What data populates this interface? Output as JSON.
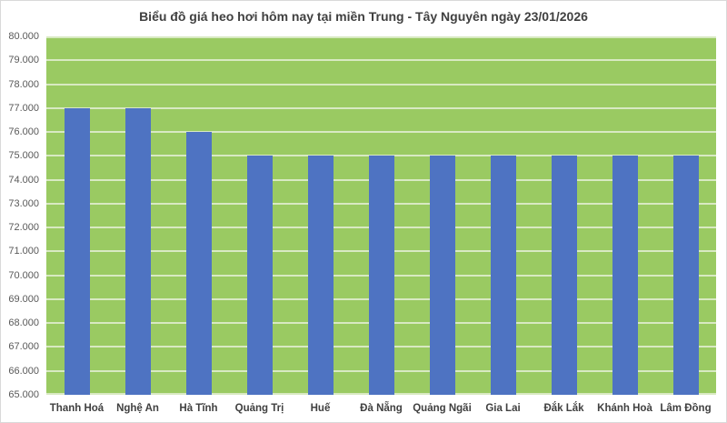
{
  "chart_data": {
    "type": "bar",
    "title": "Biểu đồ giá heo hơi hôm nay tại miền Trung - Tây Nguyên ngày 23/01/2026",
    "categories": [
      "Thanh Hoá",
      "Nghệ An",
      "Hà Tĩnh",
      "Quảng Trị",
      "Huế",
      "Đà Nẵng",
      "Quảng Ngãi",
      "Gia Lai",
      "Đắk Lắk",
      "Khánh Hoà",
      "Lâm Đồng"
    ],
    "values": [
      77000,
      77000,
      76000,
      75000,
      75000,
      75000,
      75000,
      75000,
      75000,
      75000,
      75000
    ],
    "xlabel": "",
    "ylabel": "",
    "ylim": [
      65000,
      80000
    ],
    "ytick_step": 1000,
    "ytick_values": [
      80000,
      79000,
      78000,
      77000,
      76000,
      75000,
      74000,
      73000,
      72000,
      71000,
      70000,
      69000,
      68000,
      67000,
      66000,
      65000
    ],
    "ytick_labels": [
      "80.000",
      "79.000",
      "78.000",
      "77.000",
      "76.000",
      "75.000",
      "74.000",
      "73.000",
      "72.000",
      "71.000",
      "70.000",
      "69.000",
      "68.000",
      "67.000",
      "66.000",
      "65.000"
    ],
    "grid": true,
    "legend": "none",
    "colors": {
      "bar": "#4e73c2",
      "plot_bg": "#9aca62",
      "gridline": "#d8e9c2",
      "title": "#404040",
      "axis_label": "#595959",
      "category_label": "#404040",
      "frame_border": "#d9d9d9"
    }
  }
}
